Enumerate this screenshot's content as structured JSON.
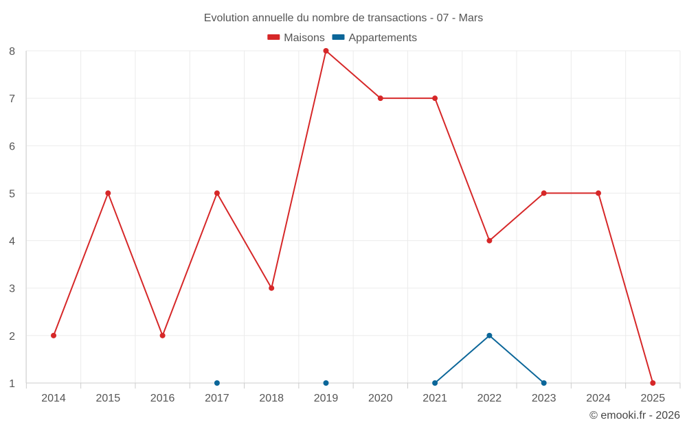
{
  "chart_data": {
    "type": "line",
    "title": "Evolution annuelle du nombre de transactions - 07 - Mars",
    "categories": [
      "2014",
      "2015",
      "2016",
      "2017",
      "2018",
      "2019",
      "2020",
      "2021",
      "2022",
      "2023",
      "2024",
      "2025"
    ],
    "ylim": [
      1,
      8
    ],
    "yticks": [
      "1",
      "2",
      "3",
      "4",
      "5",
      "6",
      "7",
      "8"
    ],
    "grid": true,
    "legend_position": "top-center",
    "series": [
      {
        "name": "Maisons",
        "color": "#d62728",
        "values": [
          2,
          5,
          2,
          5,
          3,
          8,
          7,
          7,
          4,
          5,
          5,
          1
        ]
      },
      {
        "name": "Appartements",
        "color": "#0b6699",
        "values": [
          null,
          null,
          null,
          1,
          null,
          1,
          null,
          1,
          2,
          1,
          null,
          null
        ]
      }
    ]
  },
  "credit": "© emooki.fr - 2026"
}
